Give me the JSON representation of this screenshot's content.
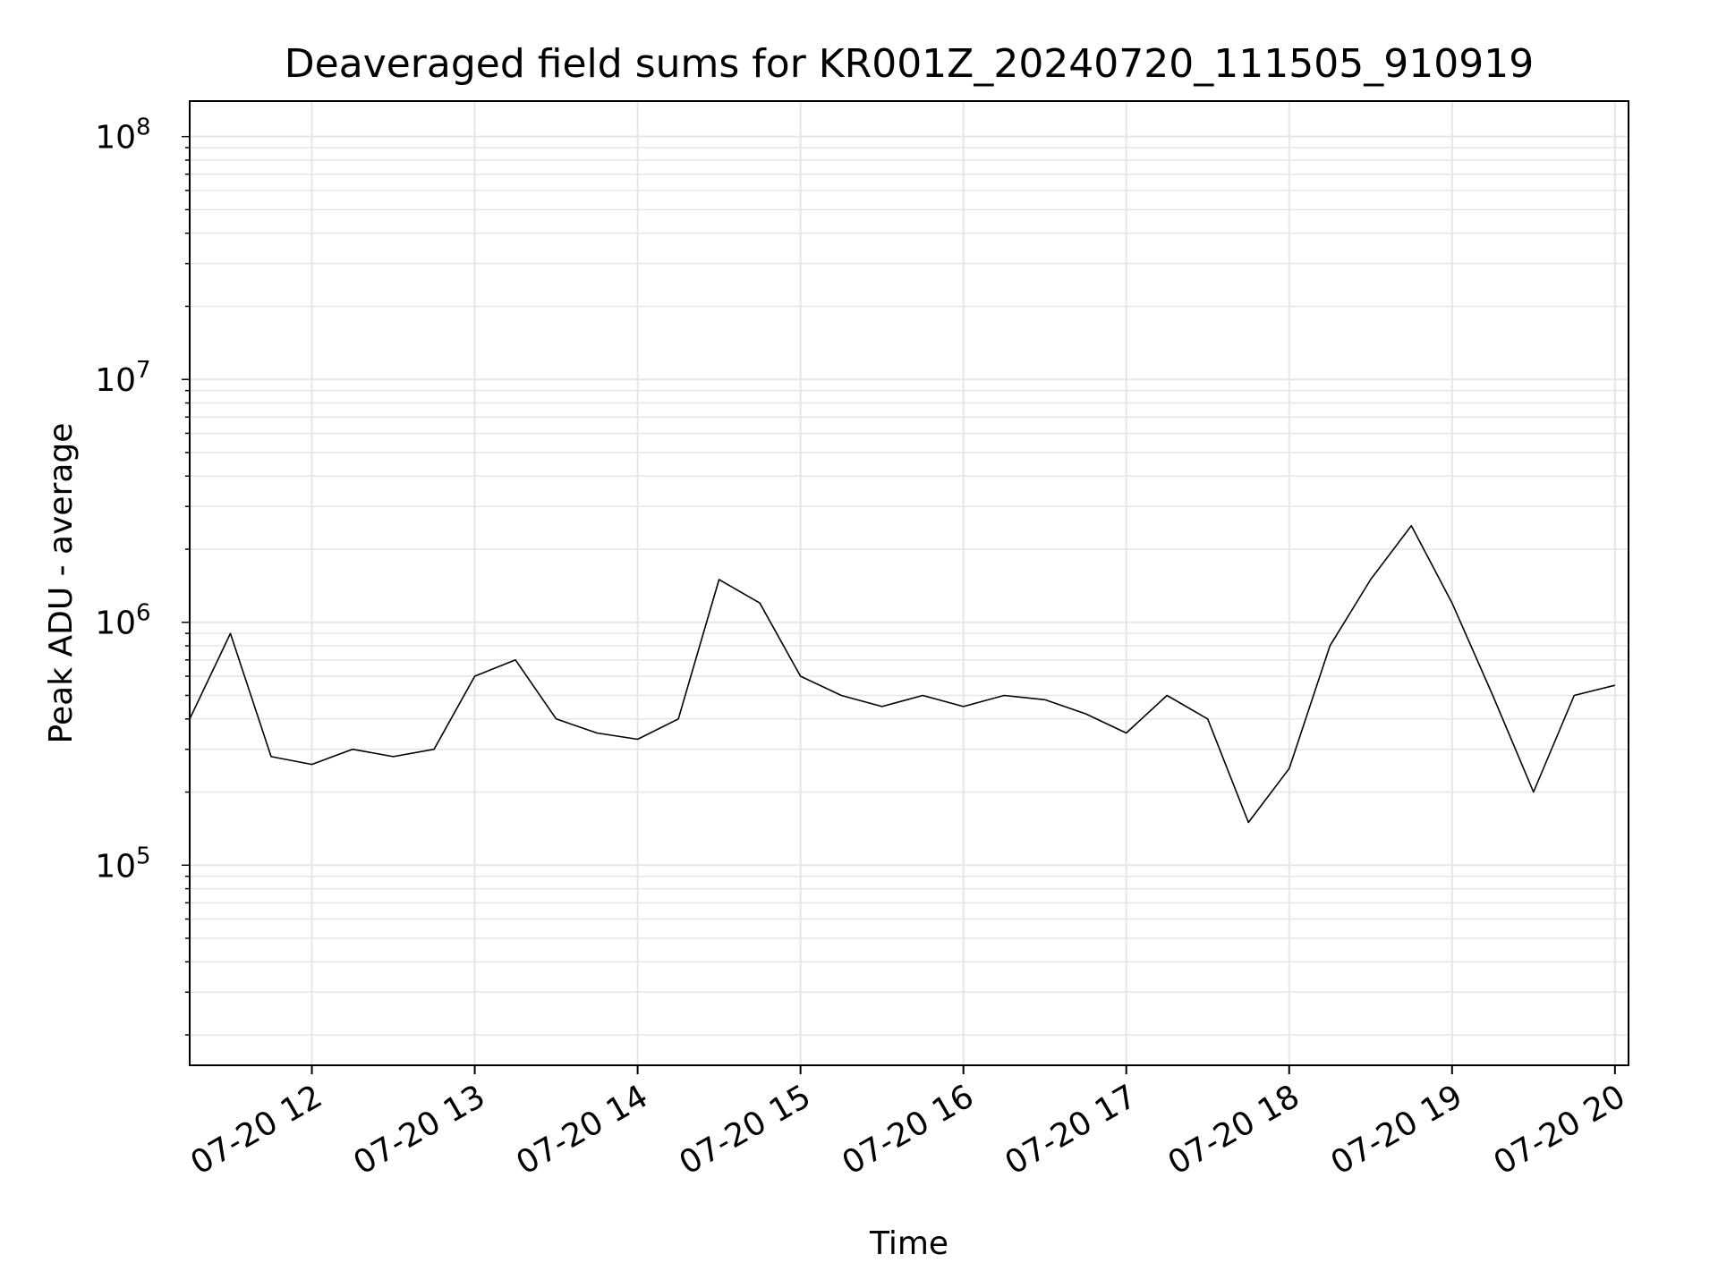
{
  "chart_data": {
    "type": "line",
    "title": "Deaveraged field sums for KR001Z_20240720_111505_910919",
    "xlabel": "Time",
    "ylabel": "Peak ADU - average",
    "x_ticks": [
      "07-20 12",
      "07-20 13",
      "07-20 14",
      "07-20 15",
      "07-20 16",
      "07-20 17",
      "07-20 18",
      "07-20 19",
      "07-20 20"
    ],
    "x_tick_values": [
      "2024-07-20 12:00",
      "2024-07-20 13:00",
      "2024-07-20 14:00",
      "2024-07-20 15:00",
      "2024-07-20 16:00",
      "2024-07-20 17:00",
      "2024-07-20 18:00",
      "2024-07-20 19:00",
      "2024-07-20 20:00"
    ],
    "xlim": [
      "2024-07-20 11:15",
      "2024-07-20 20:05"
    ],
    "y_ticks": [
      {
        "base": "10",
        "exp": "5",
        "value": 100000
      },
      {
        "base": "10",
        "exp": "6",
        "value": 1000000
      },
      {
        "base": "10",
        "exp": "7",
        "value": 10000000
      },
      {
        "base": "10",
        "exp": "8",
        "value": 100000000
      }
    ],
    "yscale": "log",
    "ylim": [
      15000,
      140000000
    ],
    "grid": true,
    "line_color": "#000000",
    "series": [
      {
        "x": [
          "2024-07-20 11:15",
          "2024-07-20 11:30",
          "2024-07-20 11:45",
          "2024-07-20 12:00",
          "2024-07-20 12:15",
          "2024-07-20 12:30",
          "2024-07-20 12:45",
          "2024-07-20 13:00",
          "2024-07-20 13:15",
          "2024-07-20 13:30",
          "2024-07-20 13:45",
          "2024-07-20 14:00",
          "2024-07-20 14:15",
          "2024-07-20 14:30",
          "2024-07-20 14:45",
          "2024-07-20 15:00",
          "2024-07-20 15:15",
          "2024-07-20 15:30",
          "2024-07-20 15:45",
          "2024-07-20 16:00",
          "2024-07-20 16:15",
          "2024-07-20 16:30",
          "2024-07-20 16:45",
          "2024-07-20 17:00",
          "2024-07-20 17:15",
          "2024-07-20 17:30",
          "2024-07-20 17:45",
          "2024-07-20 18:00",
          "2024-07-20 18:15",
          "2024-07-20 18:30",
          "2024-07-20 18:45",
          "2024-07-20 19:00",
          "2024-07-20 19:15",
          "2024-07-20 19:30",
          "2024-07-20 19:45",
          "2024-07-20 20:00"
        ],
        "y": [
          400000,
          900000,
          280000,
          260000,
          300000,
          280000,
          300000,
          600000,
          700000,
          400000,
          350000,
          330000,
          400000,
          1500000,
          1200000,
          600000,
          500000,
          450000,
          500000,
          450000,
          500000,
          480000,
          420000,
          350000,
          500000,
          400000,
          150000,
          250000,
          800000,
          1500000,
          2500000,
          1200000,
          500000,
          200000,
          500000,
          550000
        ]
      }
    ]
  }
}
